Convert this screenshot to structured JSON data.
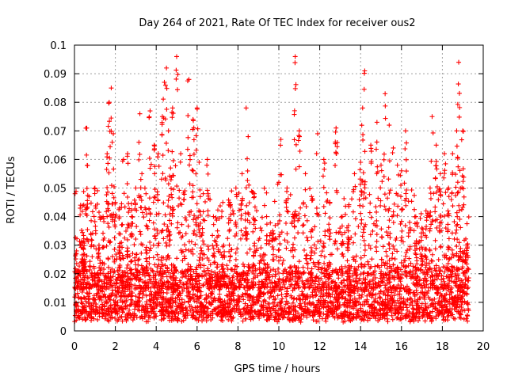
{
  "chart_data": {
    "type": "scatter",
    "title": "Day 264 of 2021, Rate Of TEC Index for receiver ous2",
    "xlabel": "GPS time / hours",
    "ylabel": "ROTI / TECUs",
    "xlim": [
      0,
      20
    ],
    "ylim": [
      0,
      0.1
    ],
    "x_ticks": [
      "0",
      "2",
      "4",
      "6",
      "8",
      "10",
      "12",
      "14",
      "16",
      "18",
      "20"
    ],
    "y_ticks": [
      "0",
      "0.01",
      "0.02",
      "0.03",
      "0.04",
      "0.05",
      "0.06",
      "0.07",
      "0.08",
      "0.09",
      "0.1"
    ],
    "grid": true,
    "marker": "+",
    "color": "#ff0000",
    "data_x_range": [
      0,
      19.3
    ],
    "background_band": [
      0.003,
      0.02
    ],
    "series": [
      {
        "x": [
          0.1,
          0.2,
          0.3,
          0.4,
          0.5,
          0.6,
          0.8,
          1.0,
          1.2,
          1.4,
          1.6,
          1.7,
          1.8,
          1.9,
          2.0,
          2.2,
          2.4,
          2.6,
          2.8,
          3.0,
          3.2,
          3.3,
          3.5,
          3.7,
          3.9,
          4.1,
          4.3,
          4.4,
          4.5,
          4.6,
          4.7,
          4.8,
          5.0,
          5.2,
          5.4,
          5.6,
          5.8,
          6.0,
          6.1,
          6.3,
          6.5,
          6.8,
          7.0,
          7.3,
          7.6,
          7.9,
          8.2,
          8.4,
          8.5,
          8.8,
          9.1,
          9.4,
          9.7,
          10.0,
          10.1,
          10.4,
          10.7,
          10.8,
          11.0,
          11.3,
          11.6,
          11.9,
          12.2,
          12.5,
          12.8,
          13.1,
          13.4,
          13.7,
          14.0,
          14.1,
          14.2,
          14.5,
          14.8,
          15.0,
          15.2,
          15.4,
          15.6,
          15.8,
          16.0,
          16.2,
          16.4,
          16.7,
          17.0,
          17.2,
          17.4,
          17.5,
          17.7,
          17.9,
          18.1,
          18.3,
          18.5,
          18.7,
          18.8,
          19.0,
          19.2
        ],
        "y": [
          0.028,
          0.021,
          0.044,
          0.031,
          0.025,
          0.071,
          0.034,
          0.05,
          0.03,
          0.04,
          0.062,
          0.08,
          0.085,
          0.069,
          0.045,
          0.043,
          0.06,
          0.062,
          0.04,
          0.05,
          0.076,
          0.055,
          0.048,
          0.077,
          0.065,
          0.062,
          0.075,
          0.087,
          0.092,
          0.07,
          0.057,
          0.078,
          0.096,
          0.062,
          0.049,
          0.088,
          0.074,
          0.078,
          0.059,
          0.048,
          0.06,
          0.04,
          0.035,
          0.03,
          0.045,
          0.05,
          0.055,
          0.078,
          0.068,
          0.048,
          0.036,
          0.04,
          0.035,
          0.052,
          0.067,
          0.05,
          0.04,
          0.096,
          0.07,
          0.055,
          0.047,
          0.069,
          0.06,
          0.045,
          0.071,
          0.04,
          0.035,
          0.055,
          0.059,
          0.078,
          0.091,
          0.065,
          0.073,
          0.058,
          0.083,
          0.072,
          0.064,
          0.058,
          0.056,
          0.07,
          0.038,
          0.04,
          0.036,
          0.042,
          0.05,
          0.075,
          0.065,
          0.055,
          0.062,
          0.05,
          0.062,
          0.07,
          0.094,
          0.07,
          0.03
        ]
      }
    ]
  }
}
